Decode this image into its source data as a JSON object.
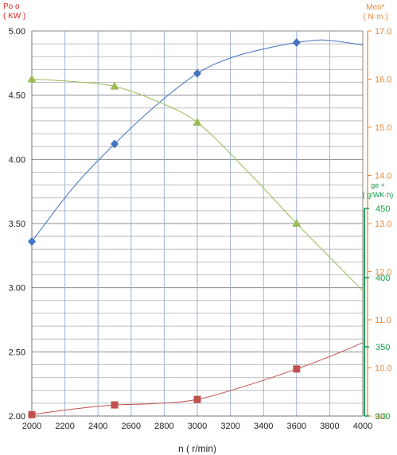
{
  "chart_data": {
    "type": "line",
    "xlabel": "n ( r/min)",
    "x_ticks": [
      "2000",
      "2200",
      "2400",
      "2600",
      "2800",
      "3000",
      "3200",
      "3400",
      "3600",
      "3800",
      "4000"
    ],
    "xlim": [
      2000,
      4000
    ],
    "left_axis": {
      "label_top": "Po o",
      "label_unit": "( KW )",
      "ylim": [
        2.0,
        5.0
      ],
      "ticks": [
        "2.00",
        "2.50",
        "3.00",
        "3.50",
        "4.00",
        "4.50",
        "5.00"
      ]
    },
    "right_axis_torque": {
      "label_top": "Meo*",
      "label_unit": "( N·m )",
      "ylim": [
        9.0,
        17.0
      ],
      "ticks": [
        "9.0",
        "10.0",
        "11.0",
        "12.0",
        "13.0",
        "14.0",
        "15.0",
        "16.0",
        "17.0"
      ]
    },
    "right_axis_fuel": {
      "label_top": "ge +",
      "label_unit": "( g/WK·h)",
      "ylim": [
        300,
        450
      ],
      "ticks": [
        "300",
        "350",
        "400",
        "450"
      ]
    },
    "series": [
      {
        "axis": "left",
        "color": "#4472c4",
        "marker": "diamond",
        "x": [
          2000,
          2500,
          3000,
          3600
        ],
        "values": [
          3.36,
          4.12,
          4.67,
          4.91
        ],
        "curve": [
          [
            2000,
            3.36
          ],
          [
            2250,
            3.78
          ],
          [
            2500,
            4.12
          ],
          [
            2750,
            4.42
          ],
          [
            3000,
            4.67
          ],
          [
            3200,
            4.79
          ],
          [
            3400,
            4.86
          ],
          [
            3600,
            4.91
          ],
          [
            3750,
            4.93
          ],
          [
            3900,
            4.91
          ],
          [
            4000,
            4.89
          ]
        ]
      },
      {
        "axis": "right_torque",
        "color": "#9bbb59",
        "marker": "triangle",
        "x": [
          2000,
          2500,
          3000,
          3600
        ],
        "values": [
          16.0,
          15.85,
          15.1,
          13.0
        ],
        "curve": [
          [
            2000,
            16.0
          ],
          [
            2250,
            15.95
          ],
          [
            2500,
            15.85
          ],
          [
            2750,
            15.55
          ],
          [
            3000,
            15.1
          ],
          [
            3300,
            14.1
          ],
          [
            3600,
            13.0
          ],
          [
            3800,
            12.3
          ],
          [
            4000,
            11.6
          ]
        ]
      },
      {
        "axis": "right_fuel",
        "color": "#c0504d",
        "marker": "square",
        "x": [
          2000,
          2500,
          3000,
          3600
        ],
        "values": [
          301,
          308,
          312,
          334
        ],
        "curve": [
          [
            2000,
            301
          ],
          [
            2250,
            305
          ],
          [
            2500,
            308
          ],
          [
            2750,
            309
          ],
          [
            3000,
            312
          ],
          [
            3300,
            322
          ],
          [
            3600,
            334
          ],
          [
            3800,
            343
          ],
          [
            4000,
            353
          ]
        ]
      }
    ]
  }
}
